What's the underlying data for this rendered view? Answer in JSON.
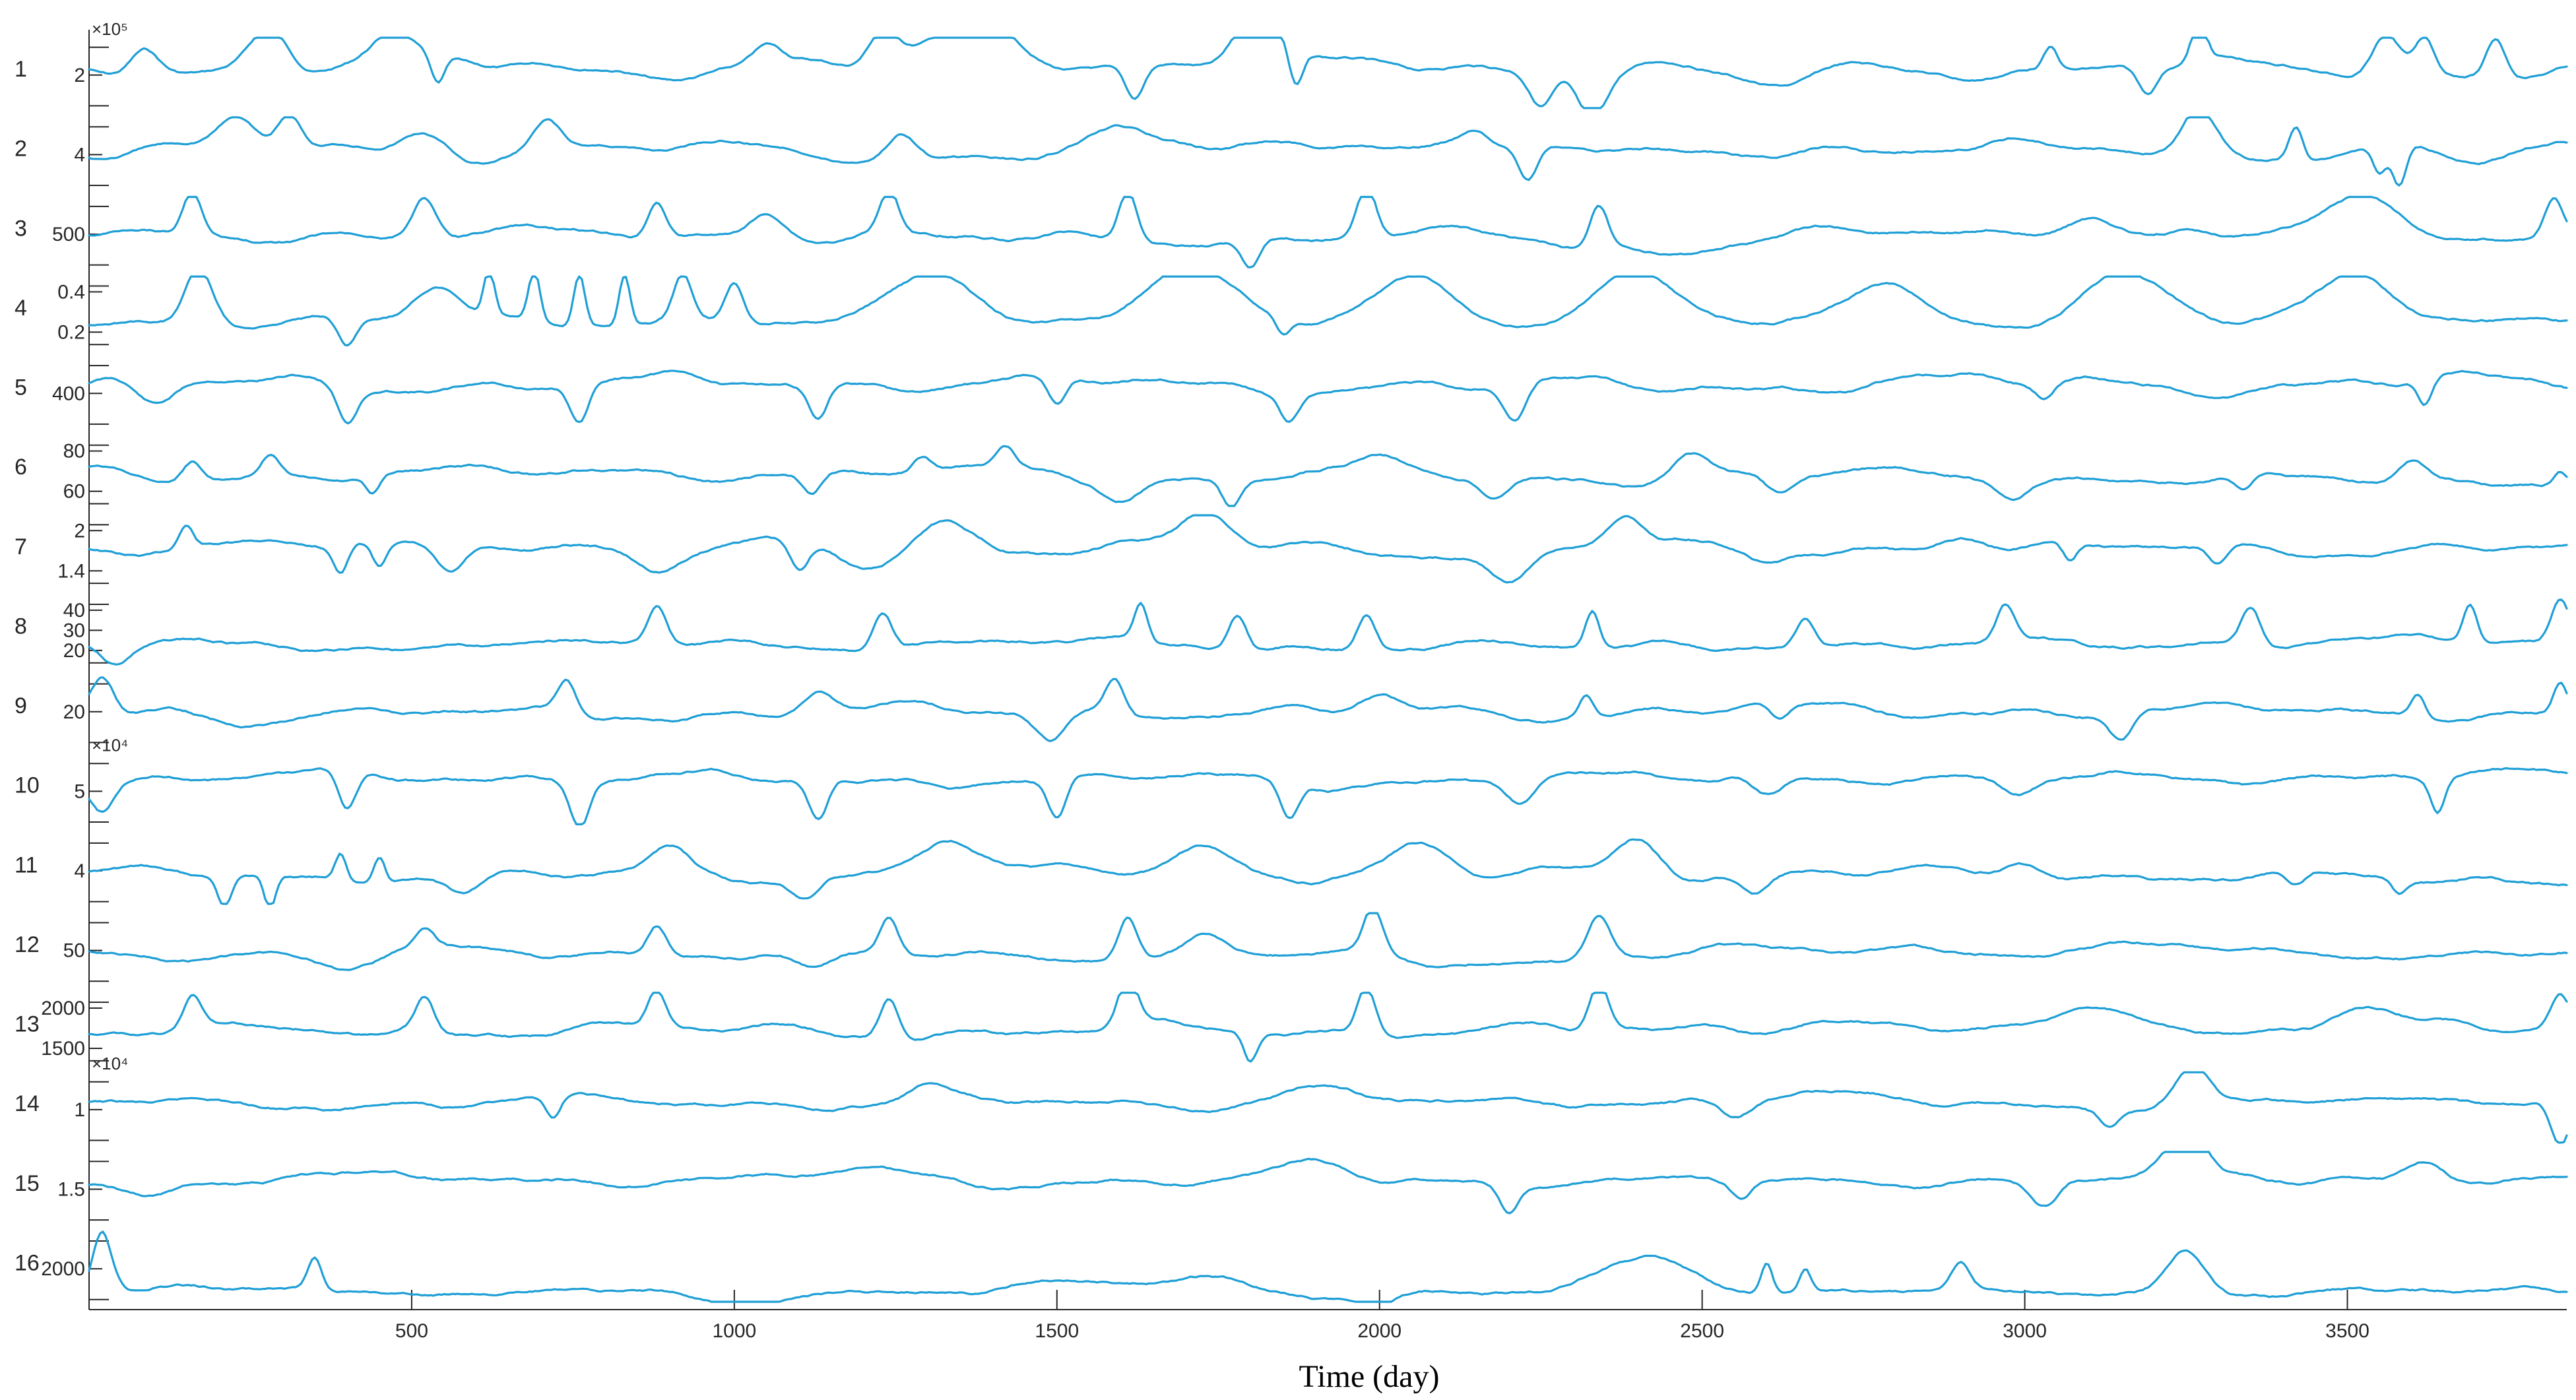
{
  "chart_data": {
    "type": "line",
    "xlabel": "Time (day)",
    "xlim": [
      0,
      3840
    ],
    "xticks": [
      500,
      1000,
      1500,
      2000,
      2500,
      3000,
      3500
    ],
    "line_color": "#1f9fd6",
    "panels": [
      {
        "label": "1",
        "ticks": [
          "2"
        ],
        "exponent": "×10⁵",
        "base": 0.45,
        "noise": 0.1,
        "bumps": [
          [
            85,
            -0.35,
            30
          ],
          [
            280,
            -0.55,
            40
          ],
          [
            470,
            -0.4,
            45
          ],
          [
            540,
            0.4,
            15
          ],
          [
            1050,
            -0.25,
            30
          ],
          [
            1230,
            -0.45,
            30
          ],
          [
            1380,
            -0.55,
            100
          ],
          [
            1620,
            0.45,
            20
          ],
          [
            1810,
            -0.8,
            45
          ],
          [
            1870,
            0.5,
            15
          ],
          [
            2250,
            0.45,
            25
          ],
          [
            2330,
            0.6,
            30
          ],
          [
            2600,
            0.25,
            100
          ],
          [
            3040,
            -0.3,
            15
          ],
          [
            3190,
            0.35,
            20
          ],
          [
            3270,
            -0.6,
            15
          ],
          [
            3560,
            -0.5,
            30
          ],
          [
            3620,
            -0.45,
            20
          ],
          [
            3730,
            -0.5,
            20
          ]
        ]
      },
      {
        "label": "2",
        "ticks": [
          "4"
        ],
        "exponent": "",
        "base": 0.45,
        "noise": 0.1,
        "bumps": [
          [
            230,
            -0.35,
            40
          ],
          [
            310,
            -0.5,
            25
          ],
          [
            520,
            -0.3,
            50
          ],
          [
            710,
            -0.4,
            30
          ],
          [
            1260,
            -0.3,
            30
          ],
          [
            1600,
            -0.2,
            50
          ],
          [
            2000,
            -0.15,
            100
          ],
          [
            2150,
            -0.2,
            30
          ],
          [
            2230,
            0.45,
            20
          ],
          [
            2400,
            0.15,
            80
          ],
          [
            3270,
            -0.55,
            35
          ],
          [
            3420,
            -0.45,
            15
          ],
          [
            3550,
            0.4,
            15
          ],
          [
            3580,
            0.6,
            15
          ],
          [
            3700,
            0.2,
            60
          ]
        ]
      },
      {
        "label": "3",
        "ticks": [
          "500"
        ],
        "exponent": "",
        "base": 0.55,
        "noise": 0.08,
        "bumps": [
          [
            160,
            -0.6,
            20
          ],
          [
            520,
            -0.55,
            25
          ],
          [
            880,
            -0.5,
            20
          ],
          [
            1050,
            -0.35,
            40
          ],
          [
            1240,
            -0.6,
            20
          ],
          [
            1610,
            -0.7,
            20
          ],
          [
            1800,
            0.4,
            20
          ],
          [
            1980,
            -0.7,
            20
          ],
          [
            2340,
            -0.6,
            20
          ],
          [
            2420,
            0.2,
            150
          ],
          [
            3100,
            -0.3,
            60
          ],
          [
            3520,
            -0.4,
            80
          ],
          [
            3820,
            -0.5,
            20
          ]
        ]
      },
      {
        "label": "4",
        "ticks": [
          "0.4",
          "0.2"
        ],
        "exponent": "",
        "base": 0.65,
        "noise": 0.06,
        "bumps": [
          [
            170,
            -0.8,
            30
          ],
          [
            400,
            0.4,
            20
          ],
          [
            540,
            -0.45,
            45
          ],
          [
            620,
            -0.6,
            12
          ],
          [
            690,
            -0.7,
            12
          ],
          [
            760,
            -0.7,
            12
          ],
          [
            830,
            -0.7,
            12
          ],
          [
            920,
            -0.6,
            20
          ],
          [
            1000,
            -0.55,
            20
          ],
          [
            1310,
            -0.75,
            90
          ],
          [
            1700,
            -0.75,
            90
          ],
          [
            1850,
            0.2,
            15
          ],
          [
            2050,
            -0.65,
            90
          ],
          [
            2400,
            -0.75,
            90
          ],
          [
            2780,
            -0.65,
            90
          ],
          [
            3150,
            -0.65,
            90
          ],
          [
            3510,
            -0.65,
            90
          ]
        ]
      },
      {
        "label": "5",
        "ticks": [
          "400"
        ],
        "exponent": "",
        "base": 0.4,
        "noise": 0.1,
        "bumps": [
          [
            100,
            0.3,
            40
          ],
          [
            400,
            0.45,
            20
          ],
          [
            760,
            0.55,
            20
          ],
          [
            1130,
            0.45,
            20
          ],
          [
            1500,
            0.4,
            20
          ],
          [
            1860,
            0.35,
            20
          ],
          [
            2210,
            0.55,
            25
          ],
          [
            3030,
            0.2,
            20
          ],
          [
            3620,
            0.35,
            15
          ]
        ]
      },
      {
        "label": "6",
        "ticks": [
          "80",
          "60"
        ],
        "exponent": "",
        "base": 0.55,
        "noise": 0.08,
        "bumps": [
          [
            160,
            -0.25,
            20
          ],
          [
            280,
            -0.3,
            20
          ],
          [
            440,
            0.25,
            15
          ],
          [
            1120,
            0.3,
            20
          ],
          [
            1290,
            -0.2,
            20
          ],
          [
            1420,
            -0.3,
            20
          ],
          [
            1600,
            0.3,
            40
          ],
          [
            1770,
            0.4,
            20
          ],
          [
            2000,
            -0.2,
            50
          ],
          [
            2180,
            0.3,
            30
          ],
          [
            2480,
            -0.3,
            40
          ],
          [
            2620,
            0.3,
            30
          ],
          [
            2980,
            0.2,
            30
          ],
          [
            3340,
            0.2,
            20
          ],
          [
            3600,
            -0.3,
            30
          ],
          [
            3830,
            -0.2,
            15
          ]
        ]
      },
      {
        "label": "7",
        "ticks": [
          "2",
          "1.4"
        ],
        "exponent": "",
        "base": 0.45,
        "noise": 0.08,
        "bumps": [
          [
            150,
            -0.3,
            15
          ],
          [
            390,
            0.35,
            15
          ],
          [
            450,
            0.35,
            15
          ],
          [
            560,
            0.4,
            30
          ],
          [
            880,
            0.35,
            50
          ],
          [
            1100,
            0.4,
            20
          ],
          [
            1200,
            0.3,
            60
          ],
          [
            1330,
            -0.35,
            60
          ],
          [
            1730,
            -0.4,
            50
          ],
          [
            2200,
            0.45,
            40
          ],
          [
            2380,
            -0.45,
            40
          ],
          [
            2600,
            0.2,
            40
          ],
          [
            2900,
            -0.2,
            50
          ],
          [
            3070,
            0.25,
            15
          ],
          [
            3300,
            0.25,
            20
          ]
        ]
      },
      {
        "label": "8",
        "ticks": [
          "40",
          "30",
          "20"
        ],
        "exponent": "",
        "base": 0.7,
        "noise": 0.06,
        "bumps": [
          [
            40,
            0.25,
            30
          ],
          [
            880,
            -0.5,
            20
          ],
          [
            1230,
            -0.5,
            20
          ],
          [
            1630,
            -0.5,
            15
          ],
          [
            1780,
            -0.5,
            20
          ],
          [
            1980,
            -0.5,
            20
          ],
          [
            2330,
            -0.5,
            15
          ],
          [
            2660,
            -0.4,
            20
          ],
          [
            2970,
            -0.5,
            20
          ],
          [
            3350,
            -0.5,
            20
          ],
          [
            3690,
            -0.5,
            15
          ],
          [
            3830,
            -0.6,
            20
          ]
        ]
      },
      {
        "label": "9",
        "ticks": [
          "20"
        ],
        "exponent": "",
        "base": 0.55,
        "noise": 0.08,
        "bumps": [
          [
            20,
            -0.5,
            25
          ],
          [
            240,
            0.1,
            60
          ],
          [
            740,
            -0.45,
            20
          ],
          [
            1130,
            -0.25,
            30
          ],
          [
            1490,
            0.35,
            30
          ],
          [
            1590,
            -0.45,
            20
          ],
          [
            2000,
            -0.2,
            40
          ],
          [
            2320,
            -0.3,
            15
          ],
          [
            2620,
            0.2,
            20
          ],
          [
            3150,
            0.4,
            25
          ],
          [
            3610,
            -0.3,
            15
          ],
          [
            3830,
            -0.4,
            15
          ]
        ]
      },
      {
        "label": "10",
        "ticks": [
          "5"
        ],
        "exponent": "×10⁴",
        "base": 0.35,
        "noise": 0.08,
        "bumps": [
          [
            20,
            0.4,
            25
          ],
          [
            400,
            0.55,
            20
          ],
          [
            760,
            0.6,
            20
          ],
          [
            1130,
            0.55,
            20
          ],
          [
            1500,
            0.55,
            20
          ],
          [
            1860,
            0.5,
            20
          ],
          [
            2220,
            0.3,
            30
          ],
          [
            2600,
            0.25,
            30
          ],
          [
            2990,
            0.3,
            40
          ],
          [
            3640,
            0.45,
            15
          ]
        ]
      },
      {
        "label": "11",
        "ticks": [
          "4"
        ],
        "exponent": "",
        "base": 0.6,
        "noise": 0.08,
        "bumps": [
          [
            210,
            0.45,
            15
          ],
          [
            280,
            0.45,
            12
          ],
          [
            390,
            -0.35,
            12
          ],
          [
            450,
            -0.35,
            12
          ],
          [
            580,
            0.3,
            40
          ],
          [
            900,
            -0.35,
            40
          ],
          [
            1110,
            0.3,
            30
          ],
          [
            1330,
            -0.45,
            60
          ],
          [
            1730,
            -0.4,
            60
          ],
          [
            2060,
            -0.4,
            60
          ],
          [
            2400,
            -0.55,
            50
          ],
          [
            2580,
            0.3,
            30
          ],
          [
            3000,
            -0.2,
            40
          ],
          [
            3420,
            0.2,
            20
          ],
          [
            3580,
            0.2,
            15
          ]
        ]
      },
      {
        "label": "12",
        "ticks": [
          "50"
        ],
        "exponent": "",
        "base": 0.55,
        "noise": 0.06,
        "bumps": [
          [
            400,
            0.25,
            60
          ],
          [
            520,
            -0.25,
            20
          ],
          [
            880,
            -0.4,
            20
          ],
          [
            1120,
            0.25,
            40
          ],
          [
            1240,
            -0.5,
            20
          ],
          [
            1610,
            -0.6,
            20
          ],
          [
            1730,
            -0.3,
            40
          ],
          [
            1990,
            -0.6,
            20
          ],
          [
            2080,
            0.15,
            40
          ],
          [
            2340,
            -0.6,
            25
          ],
          [
            3200,
            -0.1,
            100
          ]
        ]
      },
      {
        "label": "13",
        "ticks": [
          "2000",
          "1500"
        ],
        "exponent": "",
        "base": 0.55,
        "noise": 0.08,
        "bumps": [
          [
            160,
            -0.45,
            20
          ],
          [
            520,
            -0.45,
            20
          ],
          [
            880,
            -0.5,
            20
          ],
          [
            1240,
            -0.55,
            20
          ],
          [
            1610,
            -0.65,
            20
          ],
          [
            1800,
            0.4,
            15
          ],
          [
            1980,
            -0.65,
            20
          ],
          [
            2340,
            -0.65,
            20
          ],
          [
            2700,
            -0.2,
            80
          ],
          [
            3150,
            -0.25,
            80
          ],
          [
            3520,
            -0.3,
            80
          ],
          [
            3830,
            -0.45,
            20
          ]
        ]
      },
      {
        "label": "14",
        "ticks": [
          "1"
        ],
        "exponent": "×10⁴",
        "base": 0.45,
        "noise": 0.06,
        "bumps": [
          [
            720,
            0.3,
            15
          ],
          [
            1300,
            -0.2,
            40
          ],
          [
            1900,
            -0.2,
            100
          ],
          [
            2550,
            0.2,
            30
          ],
          [
            2700,
            -0.1,
            100
          ],
          [
            3130,
            0.2,
            20
          ],
          [
            3260,
            -0.55,
            35
          ],
          [
            3830,
            0.6,
            20
          ]
        ]
      },
      {
        "label": "15",
        "ticks": [
          "1.5"
        ],
        "exponent": "",
        "base": 0.4,
        "noise": 0.06,
        "bumps": [
          [
            100,
            0.15,
            60
          ],
          [
            1200,
            -0.15,
            100
          ],
          [
            1900,
            -0.25,
            80
          ],
          [
            2200,
            0.4,
            20
          ],
          [
            2560,
            0.2,
            20
          ],
          [
            3030,
            0.4,
            30
          ],
          [
            3250,
            -0.65,
            40
          ],
          [
            3620,
            -0.25,
            40
          ]
        ]
      },
      {
        "label": "16",
        "ticks": [
          "2000"
        ],
        "exponent": "",
        "base": 0.85,
        "noise": 0.04,
        "bumps": [
          [
            20,
            -0.8,
            20
          ],
          [
            80,
            0.05,
            20
          ],
          [
            350,
            -0.45,
            15
          ],
          [
            1000,
            0.2,
            80
          ],
          [
            1500,
            -0.15,
            100
          ],
          [
            1720,
            -0.25,
            100
          ],
          [
            2000,
            0.15,
            40
          ],
          [
            2420,
            -0.5,
            100
          ],
          [
            2600,
            -0.4,
            12
          ],
          [
            2660,
            -0.3,
            12
          ],
          [
            2900,
            -0.35,
            20
          ],
          [
            3250,
            -0.6,
            40
          ]
        ]
      }
    ]
  }
}
